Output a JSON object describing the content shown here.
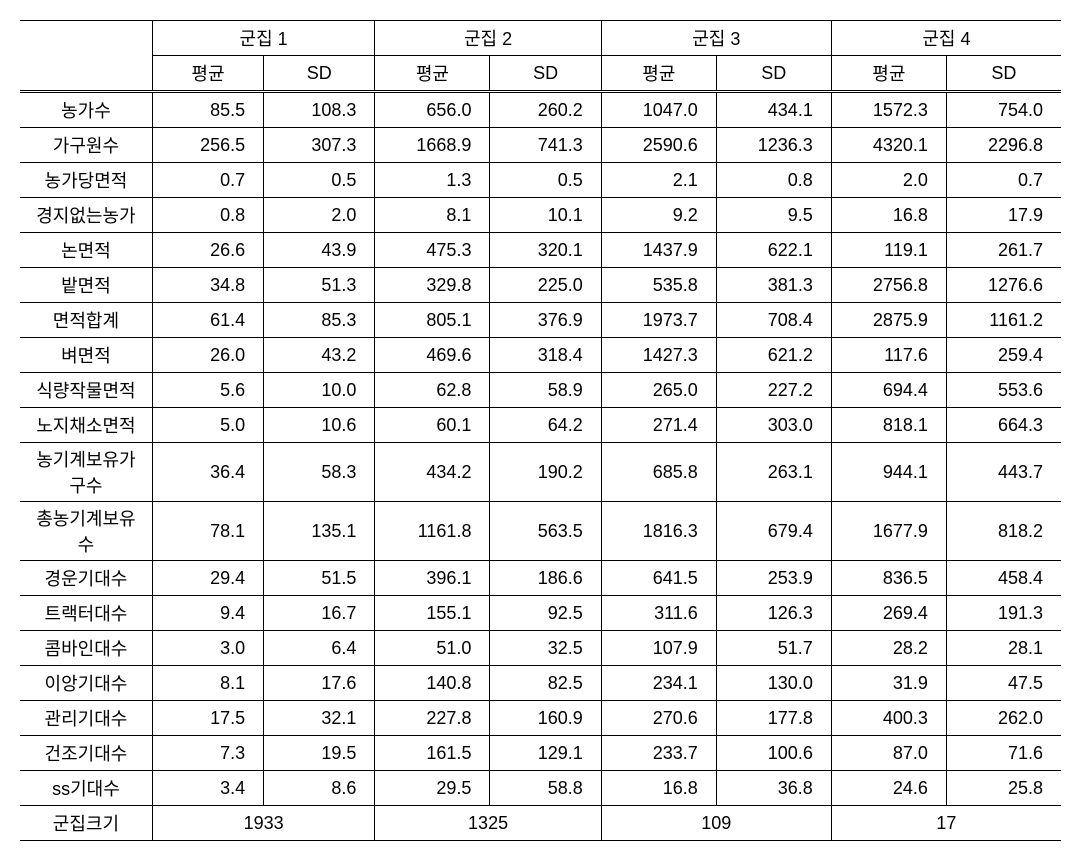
{
  "table": {
    "type": "table",
    "background_color": "#ffffff",
    "text_color": "#000000",
    "border_color": "#000000",
    "font_size": 18,
    "clusters": [
      "군집 1",
      "군집 2",
      "군집 3",
      "군집 4"
    ],
    "subheaders": [
      "평균",
      "SD"
    ],
    "row_label_header": "",
    "rows": [
      {
        "label": "농가수",
        "values": [
          "85.5",
          "108.3",
          "656.0",
          "260.2",
          "1047.0",
          "434.1",
          "1572.3",
          "754.0"
        ]
      },
      {
        "label": "가구원수",
        "values": [
          "256.5",
          "307.3",
          "1668.9",
          "741.3",
          "2590.6",
          "1236.3",
          "4320.1",
          "2296.8"
        ]
      },
      {
        "label": "농가당면적",
        "values": [
          "0.7",
          "0.5",
          "1.3",
          "0.5",
          "2.1",
          "0.8",
          "2.0",
          "0.7"
        ]
      },
      {
        "label": "경지없는농가",
        "values": [
          "0.8",
          "2.0",
          "8.1",
          "10.1",
          "9.2",
          "9.5",
          "16.8",
          "17.9"
        ]
      },
      {
        "label": "논면적",
        "values": [
          "26.6",
          "43.9",
          "475.3",
          "320.1",
          "1437.9",
          "622.1",
          "119.1",
          "261.7"
        ]
      },
      {
        "label": "밭면적",
        "values": [
          "34.8",
          "51.3",
          "329.8",
          "225.0",
          "535.8",
          "381.3",
          "2756.8",
          "1276.6"
        ]
      },
      {
        "label": "면적합계",
        "values": [
          "61.4",
          "85.3",
          "805.1",
          "376.9",
          "1973.7",
          "708.4",
          "2875.9",
          "1161.2"
        ]
      },
      {
        "label": "벼면적",
        "values": [
          "26.0",
          "43.2",
          "469.6",
          "318.4",
          "1427.3",
          "621.2",
          "117.6",
          "259.4"
        ]
      },
      {
        "label": "식량작물면적",
        "values": [
          "5.6",
          "10.0",
          "62.8",
          "58.9",
          "265.0",
          "227.2",
          "694.4",
          "553.6"
        ]
      },
      {
        "label": "노지채소면적",
        "values": [
          "5.0",
          "10.6",
          "60.1",
          "64.2",
          "271.4",
          "303.0",
          "818.1",
          "664.3"
        ]
      },
      {
        "label": "농기계보유가구수",
        "values": [
          "36.4",
          "58.3",
          "434.2",
          "190.2",
          "685.8",
          "263.1",
          "944.1",
          "443.7"
        ]
      },
      {
        "label": "총농기계보유수",
        "values": [
          "78.1",
          "135.1",
          "1161.8",
          "563.5",
          "1816.3",
          "679.4",
          "1677.9",
          "818.2"
        ]
      },
      {
        "label": "경운기대수",
        "values": [
          "29.4",
          "51.5",
          "396.1",
          "186.6",
          "641.5",
          "253.9",
          "836.5",
          "458.4"
        ]
      },
      {
        "label": "트랙터대수",
        "values": [
          "9.4",
          "16.7",
          "155.1",
          "92.5",
          "311.6",
          "126.3",
          "269.4",
          "191.3"
        ]
      },
      {
        "label": "콤바인대수",
        "values": [
          "3.0",
          "6.4",
          "51.0",
          "32.5",
          "107.9",
          "51.7",
          "28.2",
          "28.1"
        ]
      },
      {
        "label": "이앙기대수",
        "values": [
          "8.1",
          "17.6",
          "140.8",
          "82.5",
          "234.1",
          "130.0",
          "31.9",
          "47.5"
        ]
      },
      {
        "label": "관리기대수",
        "values": [
          "17.5",
          "32.1",
          "227.8",
          "160.9",
          "270.6",
          "177.8",
          "400.3",
          "262.0"
        ]
      },
      {
        "label": "건조기대수",
        "values": [
          "7.3",
          "19.5",
          "161.5",
          "129.1",
          "233.7",
          "100.6",
          "87.0",
          "71.6"
        ]
      },
      {
        "label": "ss기대수",
        "values": [
          "3.4",
          "8.6",
          "29.5",
          "58.8",
          "16.8",
          "36.8",
          "24.6",
          "25.8"
        ]
      }
    ],
    "cluster_size_label": "군집크기",
    "cluster_sizes": [
      "1933",
      "1325",
      "109",
      "17"
    ]
  }
}
